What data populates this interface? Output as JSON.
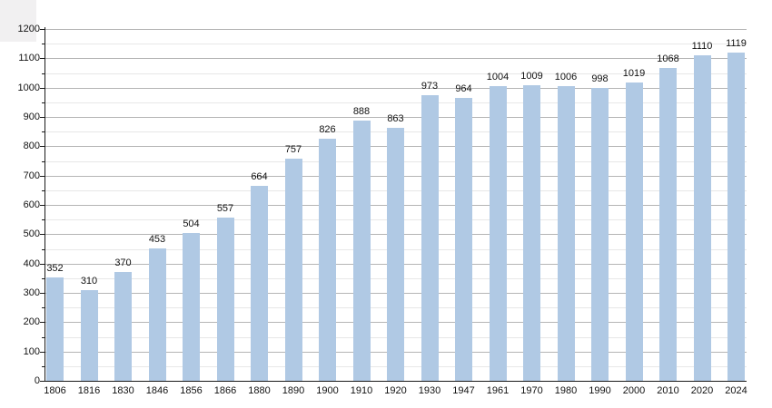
{
  "chart_data": {
    "type": "bar",
    "title": "",
    "xlabel": "",
    "ylabel": "",
    "categories": [
      "1806",
      "1816",
      "1830",
      "1846",
      "1856",
      "1866",
      "1880",
      "1890",
      "1900",
      "1910",
      "1920",
      "1930",
      "1947",
      "1961",
      "1970",
      "1980",
      "1990",
      "2000",
      "2010",
      "2020",
      "2024"
    ],
    "values": [
      352,
      310,
      370,
      453,
      504,
      557,
      664,
      757,
      826,
      888,
      863,
      973,
      964,
      1004,
      1009,
      1006,
      998,
      1019,
      1068,
      1110,
      1119
    ],
    "ylim": [
      0,
      1200
    ],
    "ytick_step": 100,
    "ytick_minor_step": 50,
    "grid": true,
    "legend": "none",
    "bar_color": "#b0c9e4",
    "axis_color": "#1a1a1a",
    "major_grid_color": "#b5b5b5",
    "minor_grid_color": "#e7e7e7",
    "label_color": "#111111"
  }
}
